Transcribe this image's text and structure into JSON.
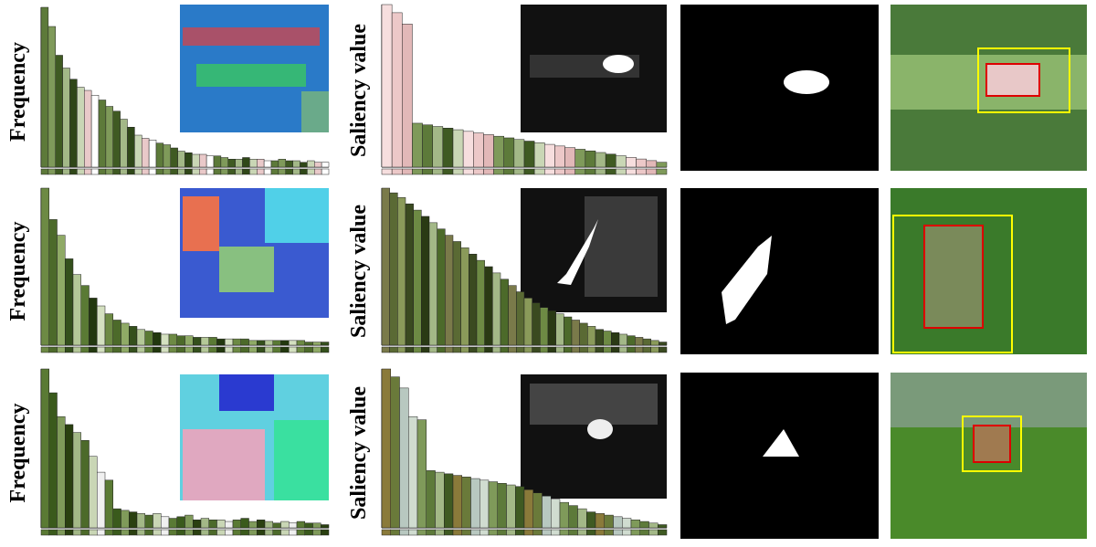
{
  "chart_data": [
    {
      "type": "bar",
      "ylabel": "Frequency",
      "colors": [
        "#5d7a3a",
        "#7f9a5a",
        "#3f5a22",
        "#a3b887",
        "#2f4718",
        "#c9d6b5",
        "#e9c9c9",
        "#ffffff"
      ],
      "values": [
        100,
        88,
        70,
        62,
        55,
        50,
        48,
        45,
        42,
        38,
        35,
        30,
        25,
        20,
        18,
        17,
        15,
        14,
        12,
        10,
        9,
        8,
        8,
        7,
        7,
        6,
        5,
        5,
        6,
        5,
        5,
        4,
        4,
        5,
        4,
        4,
        3,
        4,
        3,
        3
      ]
    },
    {
      "type": "bar",
      "ylabel": "Saliency value",
      "colors": [
        "#f6dede",
        "#ecc8c8",
        "#e2b8b8",
        "#7f9a5a",
        "#5d7a3a",
        "#a3b887",
        "#3f5a22",
        "#c9d6b5"
      ],
      "values": [
        100,
        95,
        88,
        27,
        26,
        25,
        24,
        23,
        22,
        21,
        20,
        19,
        18,
        17,
        16,
        15,
        14,
        13,
        12,
        11,
        10,
        9,
        8,
        7,
        6,
        5,
        4,
        3
      ]
    },
    {
      "type": "bar",
      "ylabel": "Frequency",
      "colors": [
        "#6d8a44",
        "#4c6a2a",
        "#8faa66",
        "#34501c",
        "#b4c898",
        "#5a7a34",
        "#22380e",
        "#d4e0c0"
      ],
      "values": [
        100,
        80,
        70,
        55,
        45,
        38,
        30,
        25,
        20,
        16,
        14,
        12,
        10,
        9,
        8,
        7,
        7,
        6,
        6,
        5,
        5,
        5,
        4,
        4,
        4,
        4,
        3,
        3,
        3,
        3,
        3,
        3,
        3,
        2,
        2,
        2
      ]
    },
    {
      "type": "bar",
      "ylabel": "Saliency value",
      "colors": [
        "#7a7a4a",
        "#5a6a34",
        "#8a9a5a",
        "#3a4a20",
        "#6d8a44",
        "#2a3a14",
        "#a3b887",
        "#4c6a2a"
      ],
      "values": [
        100,
        97,
        94,
        90,
        86,
        82,
        78,
        74,
        70,
        66,
        62,
        58,
        54,
        50,
        46,
        42,
        38,
        34,
        30,
        27,
        24,
        22,
        20,
        18,
        16,
        14,
        12,
        10,
        9,
        8,
        7,
        6,
        5,
        4,
        3,
        2
      ]
    },
    {
      "type": "bar",
      "ylabel": "Frequency",
      "colors": [
        "#5a7a34",
        "#3a5a1c",
        "#7f9a5a",
        "#2a4010",
        "#a3b887",
        "#4c6a2a",
        "#c9d6b5",
        "#f0f0f0"
      ],
      "values": [
        100,
        85,
        70,
        65,
        60,
        55,
        45,
        35,
        30,
        12,
        11,
        10,
        9,
        8,
        9,
        7,
        6,
        7,
        8,
        5,
        6,
        5,
        5,
        4,
        5,
        6,
        4,
        5,
        4,
        3,
        4,
        3,
        4,
        3,
        3,
        2
      ]
    },
    {
      "type": "bar",
      "ylabel": "Saliency value",
      "colors": [
        "#8a7a3a",
        "#6a7a3a",
        "#b8c8c0",
        "#d0dcd0",
        "#7f9a5a",
        "#5d7a3a",
        "#a3b887",
        "#3f5a22"
      ],
      "values": [
        100,
        95,
        88,
        70,
        68,
        36,
        35,
        34,
        33,
        32,
        31,
        30,
        29,
        28,
        27,
        26,
        24,
        22,
        20,
        18,
        16,
        14,
        12,
        10,
        9,
        8,
        7,
        6,
        5,
        4,
        3,
        2
      ]
    }
  ]
}
